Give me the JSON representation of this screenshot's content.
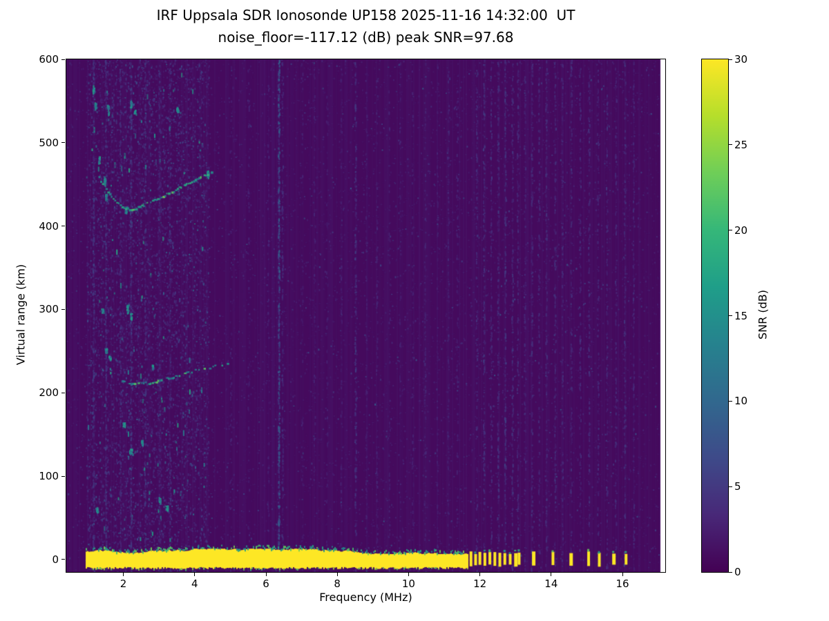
{
  "figure": {
    "title_line1": "IRF Uppsala SDR Ionosonde UP158 2025-11-16 14:32:00  UT",
    "title_line2": "noise_floor=-117.12 (dB) peak SNR=97.68"
  },
  "chart_data": {
    "type": "heatmap",
    "title": "IRF Uppsala SDR Ionosonde UP158 2025-11-16 14:32:00  UT",
    "subtitle": "noise_floor=-117.12 (dB) peak SNR=97.68",
    "station": "IRF Uppsala SDR Ionosonde UP158",
    "timestamp_ut": "2025-11-16 14:32:00 UT",
    "noise_floor_db": -117.12,
    "peak_snr_db": 97.68,
    "xlabel": "Frequency (MHz)",
    "ylabel": "Virtual range (km)",
    "colorbar_label": "SNR (dB)",
    "xlim": [
      0.4,
      17.2
    ],
    "ylim": [
      -15,
      600
    ],
    "clim": [
      0,
      30
    ],
    "x_ticks": [
      2,
      4,
      6,
      8,
      10,
      12,
      14,
      16
    ],
    "y_ticks": [
      0,
      100,
      200,
      300,
      400,
      500,
      600
    ],
    "colorbar_ticks": [
      0,
      5,
      10,
      15,
      20,
      25,
      30
    ],
    "grid": false,
    "colormap": "viridis",
    "colormap_stops": [
      "#440154",
      "#482878",
      "#3e4a89",
      "#31688e",
      "#26828e",
      "#1f9e89",
      "#35b779",
      "#6ece58",
      "#b5de2b",
      "#fde725"
    ],
    "background_snr_db": 0.8,
    "ground_pulse": {
      "freq_start_mhz": 0.95,
      "freq_end_mhz": 11.65,
      "range_top_km": 9,
      "range_bottom_km": -9,
      "snr_db": 30,
      "dashes_mhz": [
        11.75,
        11.88,
        12.0,
        12.14,
        12.28,
        12.42,
        12.56,
        12.7,
        12.85,
        13.0,
        13.1,
        13.5,
        14.05,
        14.55,
        15.05,
        15.35,
        15.75,
        16.1
      ]
    },
    "echo_traces": [
      {
        "name": "first-hop F-region echo",
        "snr_db": 13,
        "gap_fraction": 0.28,
        "points_mhz_km": [
          [
            1.95,
            214
          ],
          [
            2.2,
            211
          ],
          [
            2.45,
            211
          ],
          [
            2.7,
            212
          ],
          [
            2.95,
            214
          ],
          [
            3.2,
            217
          ],
          [
            3.45,
            220
          ],
          [
            3.7,
            223
          ],
          [
            3.95,
            226
          ],
          [
            4.2,
            229
          ],
          [
            4.45,
            231
          ],
          [
            4.7,
            233
          ],
          [
            4.95,
            235
          ]
        ]
      },
      {
        "name": "second-hop F-region echo",
        "snr_db": 15,
        "gap_fraction": 0.15,
        "points_mhz_km": [
          [
            1.3,
            458
          ],
          [
            1.45,
            447
          ],
          [
            1.6,
            438
          ],
          [
            1.75,
            430
          ],
          [
            1.9,
            425
          ],
          [
            2.05,
            421
          ],
          [
            2.2,
            420
          ],
          [
            2.4,
            422
          ],
          [
            2.6,
            426
          ],
          [
            2.85,
            431
          ],
          [
            3.1,
            436
          ],
          [
            3.35,
            441
          ],
          [
            3.6,
            447
          ],
          [
            3.85,
            452
          ],
          [
            4.1,
            457
          ],
          [
            4.3,
            461
          ],
          [
            4.5,
            465
          ]
        ]
      }
    ],
    "rfi_streaks": [
      {
        "f_mhz": 1.15,
        "strength": 0.45
      },
      {
        "f_mhz": 1.5,
        "strength": 0.4
      },
      {
        "f_mhz": 1.9,
        "strength": 0.35
      },
      {
        "f_mhz": 2.2,
        "strength": 0.45
      },
      {
        "f_mhz": 2.6,
        "strength": 0.35
      },
      {
        "f_mhz": 3.0,
        "strength": 0.3
      },
      {
        "f_mhz": 3.3,
        "strength": 0.3
      },
      {
        "f_mhz": 5.0,
        "strength": 0.12
      },
      {
        "f_mhz": 5.5,
        "strength": 0.15
      },
      {
        "f_mhz": 6.05,
        "strength": 0.15
      },
      {
        "f_mhz": 6.35,
        "strength": 0.85
      },
      {
        "f_mhz": 6.45,
        "strength": 0.3
      },
      {
        "f_mhz": 7.0,
        "strength": 0.12
      },
      {
        "f_mhz": 7.35,
        "strength": 0.15
      },
      {
        "f_mhz": 7.7,
        "strength": 0.12
      },
      {
        "f_mhz": 8.1,
        "strength": 0.15
      },
      {
        "f_mhz": 8.5,
        "strength": 0.4
      },
      {
        "f_mhz": 8.8,
        "strength": 0.15
      },
      {
        "f_mhz": 9.1,
        "strength": 0.18
      },
      {
        "f_mhz": 9.45,
        "strength": 0.15
      },
      {
        "f_mhz": 9.75,
        "strength": 0.12
      },
      {
        "f_mhz": 10.1,
        "strength": 0.15
      },
      {
        "f_mhz": 10.45,
        "strength": 0.2
      },
      {
        "f_mhz": 10.8,
        "strength": 0.15
      },
      {
        "f_mhz": 11.1,
        "strength": 0.2
      },
      {
        "f_mhz": 11.35,
        "strength": 0.18
      },
      {
        "f_mhz": 11.9,
        "strength": 0.3
      },
      {
        "f_mhz": 12.1,
        "strength": 0.35
      },
      {
        "f_mhz": 12.3,
        "strength": 0.3
      },
      {
        "f_mhz": 12.5,
        "strength": 0.35
      },
      {
        "f_mhz": 12.7,
        "strength": 0.4
      },
      {
        "f_mhz": 12.9,
        "strength": 0.35
      },
      {
        "f_mhz": 13.05,
        "strength": 0.3
      },
      {
        "f_mhz": 13.25,
        "strength": 0.25
      },
      {
        "f_mhz": 13.45,
        "strength": 0.3
      },
      {
        "f_mhz": 13.65,
        "strength": 0.25
      },
      {
        "f_mhz": 13.85,
        "strength": 0.3
      },
      {
        "f_mhz": 14.1,
        "strength": 0.3
      },
      {
        "f_mhz": 14.3,
        "strength": 0.25
      },
      {
        "f_mhz": 14.55,
        "strength": 0.3
      },
      {
        "f_mhz": 14.8,
        "strength": 0.25
      },
      {
        "f_mhz": 15.05,
        "strength": 0.3
      },
      {
        "f_mhz": 15.3,
        "strength": 0.25
      },
      {
        "f_mhz": 15.55,
        "strength": 0.3
      },
      {
        "f_mhz": 15.8,
        "strength": 0.25
      },
      {
        "f_mhz": 16.05,
        "strength": 0.3
      },
      {
        "f_mhz": 16.3,
        "strength": 0.25
      }
    ],
    "speckle_blobs": [
      [
        1.15,
        565,
        10
      ],
      [
        1.2,
        545,
        8
      ],
      [
        1.55,
        540,
        12
      ],
      [
        2.2,
        547,
        8
      ],
      [
        2.3,
        537,
        6
      ],
      [
        3.5,
        540,
        6
      ],
      [
        1.3,
        480,
        8
      ],
      [
        1.45,
        455,
        10
      ],
      [
        1.5,
        435,
        8
      ],
      [
        2.05,
        420,
        8
      ],
      [
        4.35,
        463,
        8
      ],
      [
        1.4,
        300,
        6
      ],
      [
        2.1,
        301,
        12
      ],
      [
        2.2,
        292,
        8
      ],
      [
        1.5,
        251,
        6
      ],
      [
        1.6,
        242,
        6
      ],
      [
        2.8,
        231,
        6
      ],
      [
        2.0,
        162,
        6
      ],
      [
        2.2,
        131,
        6
      ],
      [
        2.5,
        141,
        6
      ],
      [
        3.0,
        71,
        8
      ],
      [
        3.2,
        62,
        6
      ],
      [
        1.25,
        60,
        6
      ]
    ]
  }
}
